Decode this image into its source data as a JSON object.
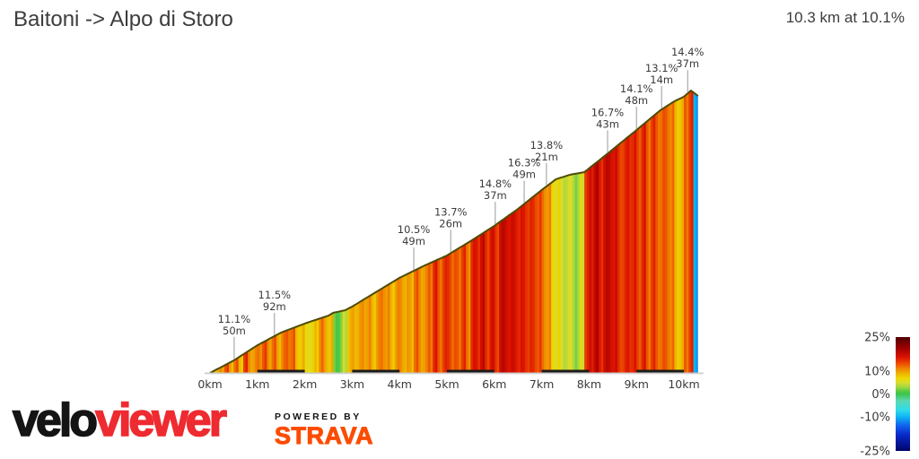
{
  "chart_data": {
    "type": "area",
    "title": "Baitoni -> Alpo di Storo",
    "subtitle": "10.3 km at 10.1%",
    "x_unit": "km",
    "total_distance_km": 10.3,
    "avg_gradient_pct": 10.1,
    "x_ticks": [
      "0km",
      "1km",
      "2km",
      "3km",
      "4km",
      "5km",
      "6km",
      "7km",
      "8km",
      "9km",
      "10km"
    ],
    "profile_height_fraction_by_km": [
      [
        0,
        0
      ],
      [
        0.5,
        0.044
      ],
      [
        1,
        0.098
      ],
      [
        1.5,
        0.143
      ],
      [
        2,
        0.175
      ],
      [
        2.5,
        0.203
      ],
      [
        2.6,
        0.213
      ],
      [
        2.85,
        0.222
      ],
      [
        3,
        0.235
      ],
      [
        3.5,
        0.286
      ],
      [
        4,
        0.337
      ],
      [
        4.5,
        0.378
      ],
      [
        5,
        0.416
      ],
      [
        5.5,
        0.467
      ],
      [
        6,
        0.521
      ],
      [
        6.5,
        0.581
      ],
      [
        7,
        0.648
      ],
      [
        7.3,
        0.686
      ],
      [
        7.6,
        0.702
      ],
      [
        7.9,
        0.711
      ],
      [
        8.4,
        0.778
      ],
      [
        9,
        0.86
      ],
      [
        9.5,
        0.93
      ],
      [
        9.8,
        0.962
      ],
      [
        10,
        0.978
      ],
      [
        10.15,
        1
      ],
      [
        10.3,
        0.981
      ]
    ],
    "bin_km": 0.1,
    "gradient_bins_pct": [
      4,
      8,
      11,
      13,
      10,
      12,
      9,
      14,
      11,
      10,
      12,
      13,
      11,
      12,
      10,
      11,
      13,
      12,
      9,
      8,
      7,
      6,
      9,
      11,
      10,
      8,
      2,
      1,
      5,
      8,
      10,
      9,
      11,
      10,
      9,
      10,
      12,
      10,
      9,
      10,
      11,
      9,
      10,
      12,
      11,
      10,
      13,
      15,
      13,
      14,
      15,
      12,
      13,
      14,
      12,
      15,
      16,
      17,
      15,
      16,
      15,
      17,
      18,
      16,
      17,
      15,
      16,
      14,
      15,
      13,
      12,
      10,
      7,
      6,
      5,
      4,
      5,
      2,
      6,
      14,
      17,
      18,
      16,
      17,
      18,
      16,
      15,
      14,
      16,
      15,
      14,
      15,
      13,
      14,
      13,
      12,
      13,
      11,
      9,
      8,
      13,
      14,
      -10
    ],
    "annotations": [
      {
        "km": 0.51,
        "grade": "11.1%",
        "gain": "50m"
      },
      {
        "km": 1.36,
        "grade": "11.5%",
        "gain": "92m"
      },
      {
        "km": 4.3,
        "grade": "10.5%",
        "gain": "49m"
      },
      {
        "km": 5.08,
        "grade": "13.7%",
        "gain": "26m"
      },
      {
        "km": 6.02,
        "grade": "14.8%",
        "gain": "37m"
      },
      {
        "km": 6.63,
        "grade": "16.3%",
        "gain": "49m"
      },
      {
        "km": 7.1,
        "grade": "13.8%",
        "gain": "21m"
      },
      {
        "km": 8.39,
        "grade": "16.7%",
        "gain": "43m"
      },
      {
        "km": 9.0,
        "grade": "14.1%",
        "gain": "48m"
      },
      {
        "km": 9.53,
        "grade": "13.1%",
        "gain": "14m"
      },
      {
        "km": 10.08,
        "grade": "14.4%",
        "gain": "37m"
      }
    ],
    "legend": {
      "min": -25,
      "max": 25,
      "ticks": [
        {
          "label": "25%",
          "value": 25
        },
        {
          "label": "10%",
          "value": 10
        },
        {
          "label": "0%",
          "value": 0
        },
        {
          "label": "-10%",
          "value": -10
        },
        {
          "label": "-25%",
          "value": -25
        }
      ]
    },
    "color_scale": [
      {
        "v": 25,
        "c": "#500000"
      },
      {
        "v": 20,
        "c": "#a00000"
      },
      {
        "v": 16,
        "c": "#dd1400"
      },
      {
        "v": 13,
        "c": "#ee5500"
      },
      {
        "v": 11,
        "c": "#f08800"
      },
      {
        "v": 9,
        "c": "#eeb400"
      },
      {
        "v": 7,
        "c": "#eed800"
      },
      {
        "v": 5,
        "c": "#d8dc30"
      },
      {
        "v": 3,
        "c": "#9ed83e"
      },
      {
        "v": 1,
        "c": "#50c844"
      },
      {
        "v": 0,
        "c": "#3cc44c"
      },
      {
        "v": -3,
        "c": "#5ad8b4"
      },
      {
        "v": -7,
        "c": "#30dce8"
      },
      {
        "v": -10,
        "c": "#10b4f4"
      },
      {
        "v": -14,
        "c": "#1060ec"
      },
      {
        "v": -18,
        "c": "#0828c8"
      },
      {
        "v": -25,
        "c": "#000468"
      }
    ],
    "profile_outline_color": "#4f4a05",
    "axis_line_color": "#cfcfcf",
    "axis_band_color": "#1b1b1b",
    "label_color": "#3a3a3a"
  },
  "logo": {
    "velo": "velo",
    "viewer": "viewer",
    "powered_by": "POWERED BY",
    "strava": "STRAVA"
  }
}
